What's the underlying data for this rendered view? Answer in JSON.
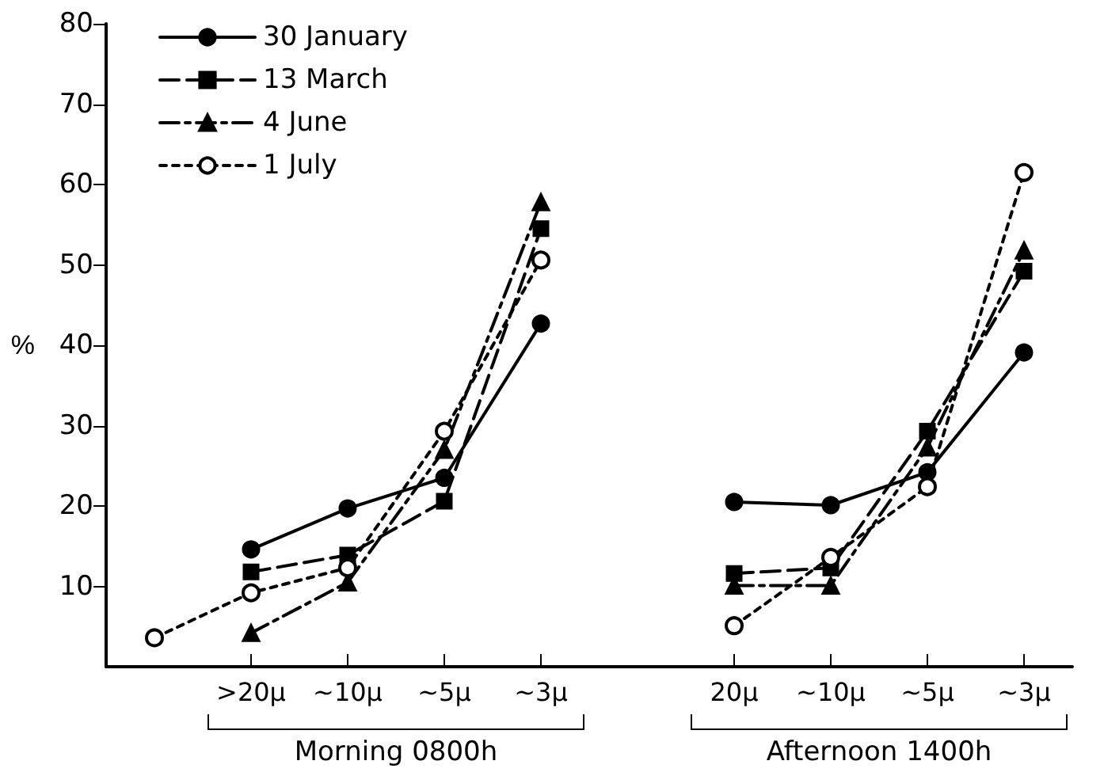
{
  "chart_data": {
    "type": "line",
    "ylabel": "%",
    "categories": [
      null,
      ">20μ",
      "~10μ",
      "~5μ",
      "~3μ",
      null,
      "20μ",
      "~10μ",
      "~5μ",
      "~3μ"
    ],
    "series": [
      {
        "name": "30 January",
        "color": "#000000",
        "marker": "circle",
        "line_style": "solid",
        "values": [
          null,
          14.6,
          19.7,
          23.5,
          42.7,
          null,
          20.5,
          20.1,
          24.2,
          39.1
        ]
      },
      {
        "name": "13 March",
        "color": "#000000",
        "marker": "square",
        "line_style": "dashed",
        "values": [
          null,
          11.8,
          13.9,
          20.6,
          54.5,
          null,
          11.6,
          12.3,
          29.3,
          49.2
        ]
      },
      {
        "name": "4 June",
        "color": "#000000",
        "marker": "triangle",
        "line_style": "dashdot",
        "values": [
          null,
          4.2,
          10.5,
          27,
          57.8,
          null,
          10.1,
          10.1,
          27.3,
          51.8
        ]
      },
      {
        "name": "1 July",
        "color": "#000000",
        "marker": "open-circle",
        "line_style": "dotted",
        "values": [
          3.6,
          9.2,
          12.3,
          29.3,
          50.6,
          null,
          5.1,
          13.6,
          22.4,
          61.5
        ]
      }
    ],
    "annotations": [
      "Morning  0800h",
      "Afternoon  1400h"
    ],
    "ylim": [
      0,
      80
    ],
    "yticks": [
      10,
      20,
      30,
      40,
      50,
      60,
      70,
      80
    ],
    "grid": false,
    "legend": "top left"
  }
}
